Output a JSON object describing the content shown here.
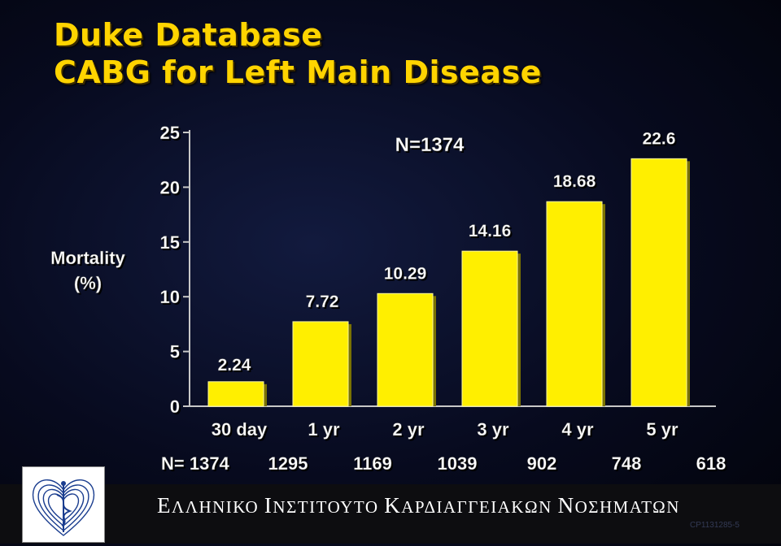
{
  "title_line1": "Duke Database",
  "title_line2": "CABG for Left Main Disease",
  "footer": {
    "institute_words": [
      {
        "cap": "Ε",
        "rest": "ΛΛΗΝΙΚΟ"
      },
      {
        "cap": "Ι",
        "rest": "ΝΣΤΙΤΟΥΤΟ"
      },
      {
        "cap": "Κ",
        "rest": "ΑΡΔΙΑΓΓΕΙΑΚΩΝ"
      },
      {
        "cap": "Ν",
        "rest": "ΟΣΗΜΑΤΩΝ"
      }
    ],
    "code": "CP1131285-5"
  },
  "colors": {
    "title": "#ffd400",
    "bar": "#ffef00",
    "text": "#ffffff",
    "axis": "#c8c8c8"
  },
  "chart_data": {
    "type": "bar",
    "title": "",
    "annotation": "N=1374",
    "ylabel": "Mortality\n(%)",
    "xlabel": "",
    "ylim": [
      0,
      25
    ],
    "yticks": [
      0,
      5,
      10,
      15,
      20,
      25
    ],
    "categories": [
      "30 day",
      "1 yr",
      "2 yr",
      "3 yr",
      "4 yr",
      "5 yr"
    ],
    "values": [
      2.24,
      7.72,
      10.29,
      14.16,
      18.68,
      22.6
    ],
    "value_labels": [
      "2.24",
      "7.72",
      "10.29",
      "14.16",
      "18.68",
      "22.6"
    ],
    "n_label": "N= 1374",
    "n_at_risk": [
      "1295",
      "1169",
      "1039",
      "902",
      "748",
      "618"
    ],
    "grid": false,
    "legend": "none"
  }
}
